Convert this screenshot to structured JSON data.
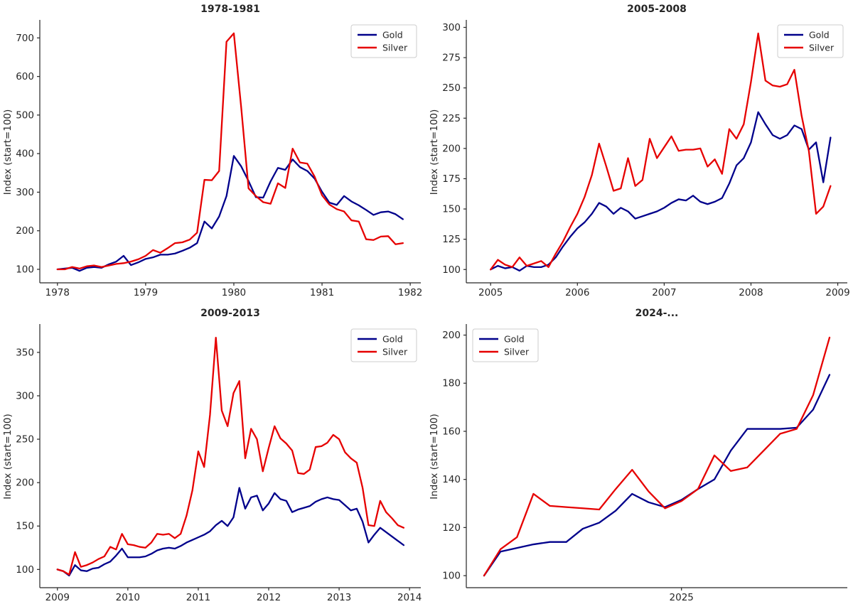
{
  "figure": {
    "background": "#ffffff",
    "text_color": "#262626",
    "spine_color": "#262626",
    "legend": {
      "border": "#cccccc",
      "background": "#ffffff",
      "labels": [
        "Gold",
        "Silver"
      ]
    },
    "accent_colors": {
      "gold": "#00008b",
      "silver": "#e60000"
    }
  },
  "chart_data": [
    {
      "type": "line",
      "title": "1978-1981",
      "ylabel": "Index (start=100)",
      "x_start": 1978.0,
      "x_frequency": "monthly",
      "xlim": [
        1977.8,
        1982.12
      ],
      "ylim": [
        65,
        743
      ],
      "xticks": [
        1978,
        1979,
        1980,
        1981,
        1982
      ],
      "yticks": [
        100,
        200,
        300,
        400,
        500,
        600,
        700
      ],
      "grid": false,
      "legend_loc": "upper right",
      "series": [
        {
          "name": "Gold",
          "color": "#00008b",
          "values": [
            100,
            102,
            104,
            96,
            104,
            106,
            104,
            113,
            120,
            135,
            111,
            118,
            127,
            131,
            138,
            138,
            141,
            148,
            156,
            168,
            224,
            206,
            237,
            290,
            394,
            367,
            329,
            287,
            286,
            328,
            363,
            358,
            385,
            365,
            355,
            335,
            301,
            273,
            267,
            290,
            276,
            266,
            254,
            241,
            248,
            250,
            243,
            230
          ]
        },
        {
          "name": "Silver",
          "color": "#e60000",
          "values": [
            100,
            100,
            106,
            102,
            108,
            110,
            106,
            110,
            114,
            116,
            120,
            126,
            135,
            150,
            143,
            155,
            168,
            170,
            177,
            195,
            332,
            331,
            355,
            690,
            712,
            520,
            310,
            290,
            274,
            270,
            323,
            311,
            413,
            377,
            374,
            340,
            292,
            268,
            256,
            250,
            227,
            224,
            178,
            176,
            185,
            186,
            165,
            168
          ]
        }
      ]
    },
    {
      "type": "line",
      "title": "2005-2008",
      "ylabel": "Index (start=100)",
      "x_start": 2005.0,
      "x_frequency": "monthly",
      "xlim": [
        2004.72,
        2009.11
      ],
      "ylim": [
        89,
        305
      ],
      "xticks": [
        2005,
        2006,
        2007,
        2008,
        2009
      ],
      "yticks": [
        100,
        125,
        150,
        175,
        200,
        225,
        250,
        275,
        300
      ],
      "grid": false,
      "legend_loc": "upper right",
      "series": [
        {
          "name": "Gold",
          "color": "#00008b",
          "values": [
            100,
            103,
            101,
            102,
            99,
            103,
            102,
            102,
            104,
            110,
            119,
            127,
            134,
            139,
            146,
            155,
            152,
            146,
            151,
            148,
            142,
            144,
            146,
            148,
            151,
            155,
            158,
            157,
            161,
            156,
            154,
            156,
            159,
            171,
            186,
            192,
            205,
            230,
            220,
            211,
            208,
            211,
            219,
            216,
            199,
            205,
            172,
            209
          ]
        },
        {
          "name": "Silver",
          "color": "#e60000",
          "values": [
            100,
            108,
            104,
            102,
            110,
            103,
            105,
            107,
            102,
            113,
            123,
            135,
            146,
            160,
            178,
            204,
            185,
            165,
            167,
            192,
            169,
            174,
            208,
            192,
            201,
            210,
            198,
            199,
            199,
            200,
            185,
            191,
            179,
            216,
            208,
            220,
            255,
            295,
            256,
            252,
            251,
            253,
            265,
            227,
            198,
            146,
            152,
            169
          ]
        }
      ]
    },
    {
      "type": "line",
      "title": "2009-2013",
      "ylabel": "Index (start=100)",
      "x_start": 2009.0,
      "x_frequency": "monthly",
      "xlim": [
        2008.75,
        2014.16
      ],
      "ylim": [
        79,
        381
      ],
      "xticks": [
        2009,
        2010,
        2011,
        2012,
        2013,
        2014
      ],
      "yticks": [
        100,
        150,
        200,
        250,
        300,
        350
      ],
      "grid": false,
      "legend_loc": "upper right",
      "series": [
        {
          "name": "Gold",
          "color": "#00008b",
          "values": [
            100,
            98,
            93,
            105,
            99,
            98,
            101,
            102,
            106,
            109,
            116,
            124,
            114,
            114,
            114,
            115,
            118,
            122,
            124,
            125,
            124,
            127,
            131,
            134,
            137,
            140,
            144,
            151,
            156,
            150,
            160,
            194,
            170,
            183,
            185,
            168,
            176,
            188,
            181,
            179,
            166,
            169,
            171,
            173,
            178,
            181,
            183,
            181,
            180,
            174,
            168,
            170,
            155,
            131,
            140,
            148,
            143,
            138,
            133,
            128
          ]
        },
        {
          "name": "Silver",
          "color": "#e60000",
          "values": [
            100,
            98,
            94,
            120,
            103,
            105,
            108,
            112,
            115,
            126,
            123,
            141,
            129,
            128,
            126,
            125,
            131,
            141,
            140,
            141,
            136,
            141,
            162,
            191,
            236,
            218,
            278,
            367,
            283,
            265,
            303,
            317,
            228,
            262,
            250,
            213,
            240,
            265,
            251,
            245,
            237,
            211,
            210,
            215,
            241,
            242,
            246,
            255,
            250,
            235,
            228,
            223,
            194,
            151,
            150,
            179,
            166,
            159,
            151,
            148
          ]
        }
      ]
    },
    {
      "type": "line",
      "title": "2024-...",
      "ylabel": "Index (start=100)",
      "x_start": 2024.0,
      "x_frequency": "monthly",
      "xlim": [
        2023.91,
        2025.84
      ],
      "ylim": [
        95,
        204
      ],
      "xticks": [
        2025
      ],
      "yticks": [
        100,
        120,
        140,
        160,
        180,
        200
      ],
      "grid": false,
      "legend_loc": "upper left",
      "series": [
        {
          "name": "Gold",
          "color": "#00008b",
          "values": [
            100,
            110,
            111.5,
            113,
            114,
            114,
            119.5,
            122,
            127,
            134,
            130.5,
            128.5,
            131.5,
            136,
            140,
            152,
            161,
            161,
            161,
            161.5,
            169,
            183.5
          ]
        },
        {
          "name": "Silver",
          "color": "#e60000",
          "values": [
            100,
            111,
            116,
            134,
            129,
            128.5,
            128,
            127.5,
            136,
            144,
            135,
            128,
            131,
            136,
            150,
            143.5,
            145,
            152,
            159,
            161,
            175,
            199
          ]
        }
      ]
    }
  ]
}
